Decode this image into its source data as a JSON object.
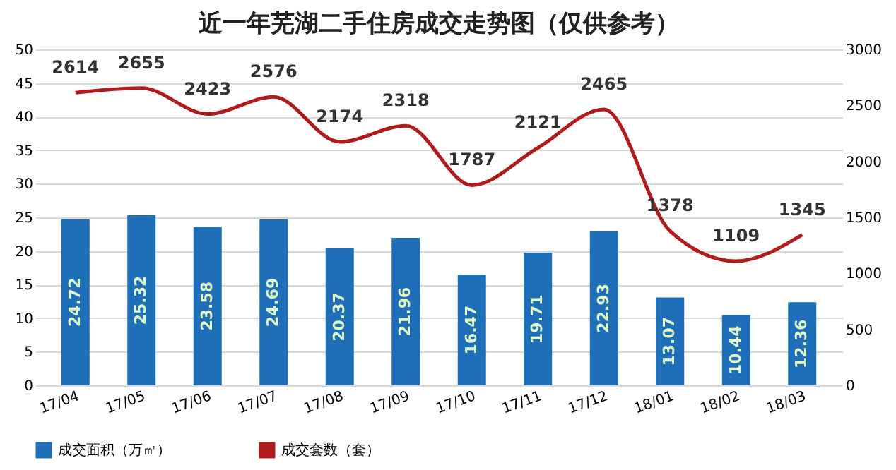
{
  "chart_data": {
    "type": "bar",
    "title": "近一年芜湖二手住房成交走势图（仅供参考）",
    "categories": [
      "17/04",
      "17/05",
      "17/06",
      "17/07",
      "17/08",
      "17/09",
      "17/10",
      "17/11",
      "17/12",
      "18/01",
      "18/02",
      "18/03"
    ],
    "series": [
      {
        "name": "成交面积（万㎡）",
        "axis": "y",
        "color": "#1f6fb8",
        "values": [
          24.72,
          25.32,
          23.58,
          24.69,
          20.37,
          21.96,
          16.47,
          19.71,
          22.93,
          13.07,
          10.44,
          12.36
        ]
      },
      {
        "name": "成交套数（套）",
        "type": "line",
        "axis": "y2",
        "color": "#b01c1c",
        "values": [
          2614,
          2655,
          2423,
          2576,
          2174,
          2318,
          1787,
          2121,
          2465,
          1378,
          1109,
          1345
        ]
      }
    ],
    "ylim": [
      0,
      50
    ],
    "yticks": [
      0,
      5,
      10,
      15,
      20,
      25,
      30,
      35,
      40,
      45,
      50
    ],
    "y2lim": [
      0,
      3000
    ],
    "y2ticks": [
      0,
      500,
      1000,
      1500,
      2000,
      2500,
      3000
    ],
    "grid": "y",
    "legend": "bottom",
    "data_labels": true,
    "marker": "none"
  }
}
